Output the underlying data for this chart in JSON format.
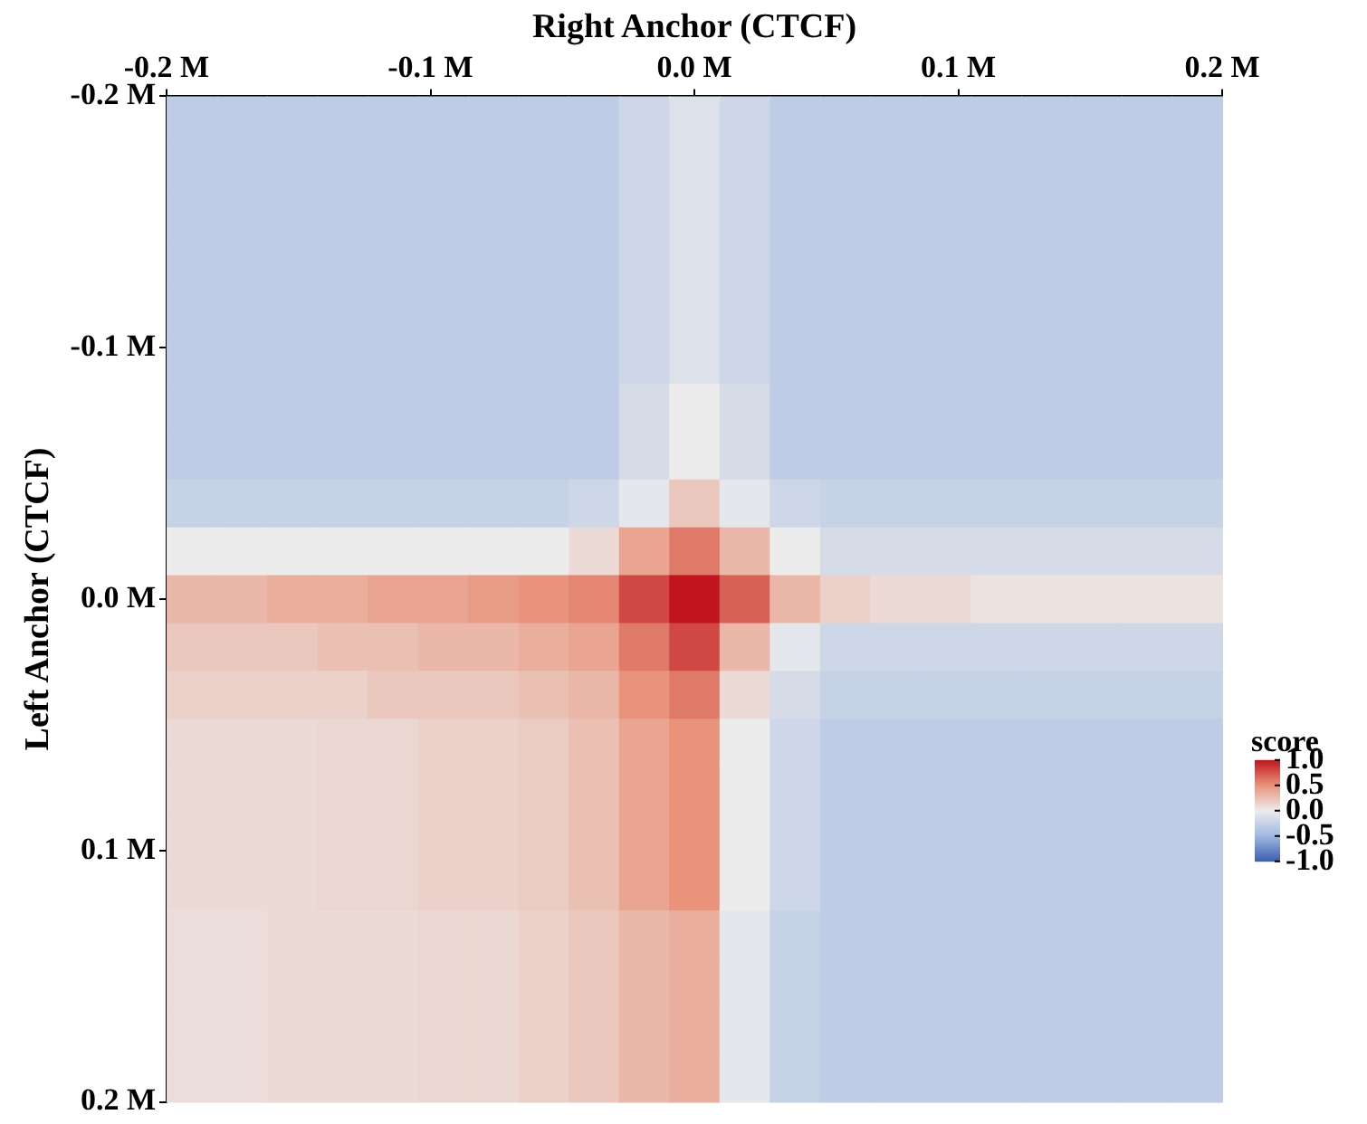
{
  "chart_data": {
    "type": "heatmap",
    "x2label": "Right Anchor (CTCF)",
    "ylabel": "Left Anchor (CTCF)",
    "clabel": "score",
    "categories": [
      null,
      null,
      null,
      null,
      null,
      null,
      null,
      null,
      null,
      null,
      null,
      null,
      null,
      null,
      null,
      null,
      null,
      null,
      null,
      null,
      null
    ],
    "x2lim": [
      -0.2,
      0.2
    ],
    "x2ticks": [
      {
        "value": -0.2,
        "label": "-0.2 M"
      },
      {
        "value": -0.1,
        "label": "-0.1 M"
      },
      {
        "value": 0,
        "label": "0.0 M"
      },
      {
        "value": 0.1,
        "label": "0.1 M"
      },
      {
        "value": 0.2,
        "label": "0.2 M"
      }
    ],
    "ylim": [
      0.2,
      -0.2
    ],
    "yticks": [
      {
        "value": -0.2,
        "label": "-0.2 M"
      },
      {
        "value": -0.1,
        "label": "-0.1 M"
      },
      {
        "value": 0,
        "label": "0.0 M"
      },
      {
        "value": 0.1,
        "label": "0.1 M"
      },
      {
        "value": 0.2,
        "label": "0.2 M"
      }
    ],
    "clim": [
      -1,
      1
    ],
    "cticks": [
      {
        "value": 1,
        "label": "1.0"
      },
      {
        "value": 0.5,
        "label": "0.5"
      },
      {
        "value": 0,
        "label": "0.0"
      },
      {
        "value": -0.5,
        "label": "-0.5"
      },
      {
        "value": -1,
        "label": "-1.0"
      }
    ],
    "cells": [
      [
        -0.3,
        -0.3,
        -0.3,
        -0.3,
        -0.3,
        -0.3,
        -0.3,
        -0.3,
        -0.3,
        -0.2,
        -0.1,
        -0.2,
        -0.3,
        -0.3,
        -0.3,
        -0.3,
        -0.3,
        -0.3,
        -0.3,
        -0.3,
        -0.3
      ],
      [
        -0.3,
        -0.3,
        -0.3,
        -0.3,
        -0.3,
        -0.3,
        -0.3,
        -0.3,
        -0.3,
        -0.2,
        -0.1,
        -0.2,
        -0.3,
        -0.3,
        -0.3,
        -0.3,
        -0.3,
        -0.3,
        -0.3,
        -0.3,
        -0.3
      ],
      [
        -0.3,
        -0.3,
        -0.3,
        -0.3,
        -0.3,
        -0.3,
        -0.3,
        -0.3,
        -0.3,
        -0.2,
        -0.1,
        -0.2,
        -0.3,
        -0.3,
        -0.3,
        -0.3,
        -0.3,
        -0.3,
        -0.3,
        -0.3,
        -0.3
      ],
      [
        -0.3,
        -0.3,
        -0.3,
        -0.3,
        -0.3,
        -0.3,
        -0.3,
        -0.3,
        -0.3,
        -0.2,
        -0.1,
        -0.2,
        -0.3,
        -0.3,
        -0.3,
        -0.3,
        -0.3,
        -0.3,
        -0.3,
        -0.3,
        -0.3
      ],
      [
        -0.3,
        -0.3,
        -0.3,
        -0.3,
        -0.3,
        -0.3,
        -0.3,
        -0.3,
        -0.3,
        -0.2,
        -0.1,
        -0.2,
        -0.3,
        -0.3,
        -0.3,
        -0.3,
        -0.3,
        -0.3,
        -0.3,
        -0.3,
        -0.3
      ],
      [
        -0.3,
        -0.3,
        -0.3,
        -0.3,
        -0.3,
        -0.3,
        -0.3,
        -0.3,
        -0.3,
        -0.2,
        -0.1,
        -0.2,
        -0.3,
        -0.3,
        -0.3,
        -0.3,
        -0.3,
        -0.3,
        -0.3,
        -0.3,
        -0.3
      ],
      [
        -0.3,
        -0.3,
        -0.3,
        -0.3,
        -0.3,
        -0.3,
        -0.3,
        -0.3,
        -0.3,
        -0.15,
        0,
        -0.15,
        -0.3,
        -0.3,
        -0.3,
        -0.3,
        -0.3,
        -0.3,
        -0.3,
        -0.3,
        -0.3
      ],
      [
        -0.3,
        -0.3,
        -0.3,
        -0.3,
        -0.3,
        -0.3,
        -0.3,
        -0.3,
        -0.3,
        -0.15,
        0,
        -0.15,
        -0.3,
        -0.3,
        -0.3,
        -0.3,
        -0.3,
        -0.3,
        -0.3,
        -0.3,
        -0.3
      ],
      [
        -0.25,
        -0.25,
        -0.25,
        -0.25,
        -0.25,
        -0.25,
        -0.25,
        -0.25,
        -0.2,
        -0.05,
        0.2,
        -0.05,
        -0.2,
        -0.25,
        -0.25,
        -0.25,
        -0.25,
        -0.25,
        -0.25,
        -0.25,
        -0.25
      ],
      [
        0,
        0,
        0,
        0,
        0,
        0,
        0,
        0,
        0.1,
        0.4,
        0.6,
        0.3,
        0,
        -0.15,
        -0.15,
        -0.15,
        -0.15,
        -0.15,
        -0.15,
        -0.15,
        -0.15
      ],
      [
        0.3,
        0.3,
        0.35,
        0.35,
        0.4,
        0.4,
        0.45,
        0.5,
        0.55,
        0.8,
        1,
        0.7,
        0.3,
        0.15,
        0.1,
        0.1,
        0.05,
        0.05,
        0.05,
        0.05,
        0.05
      ],
      [
        0.2,
        0.2,
        0.2,
        0.25,
        0.25,
        0.3,
        0.3,
        0.35,
        0.4,
        0.6,
        0.8,
        0.3,
        -0.05,
        -0.2,
        -0.2,
        -0.2,
        -0.2,
        -0.2,
        -0.2,
        -0.2,
        -0.2
      ],
      [
        0.15,
        0.15,
        0.15,
        0.15,
        0.2,
        0.2,
        0.2,
        0.25,
        0.3,
        0.5,
        0.6,
        0.1,
        -0.15,
        -0.25,
        -0.25,
        -0.25,
        -0.25,
        -0.25,
        -0.25,
        -0.25,
        -0.25
      ],
      [
        0.1,
        0.1,
        0.1,
        0.12,
        0.12,
        0.15,
        0.15,
        0.18,
        0.25,
        0.4,
        0.5,
        0,
        -0.2,
        -0.3,
        -0.3,
        -0.3,
        -0.3,
        -0.3,
        -0.3,
        -0.3,
        -0.3
      ],
      [
        0.1,
        0.1,
        0.1,
        0.12,
        0.12,
        0.15,
        0.15,
        0.18,
        0.25,
        0.4,
        0.5,
        0,
        -0.2,
        -0.3,
        -0.3,
        -0.3,
        -0.3,
        -0.3,
        -0.3,
        -0.3,
        -0.3
      ],
      [
        0.1,
        0.1,
        0.1,
        0.12,
        0.12,
        0.15,
        0.15,
        0.18,
        0.25,
        0.4,
        0.5,
        0,
        -0.2,
        -0.3,
        -0.3,
        -0.3,
        -0.3,
        -0.3,
        -0.3,
        -0.3,
        -0.3
      ],
      [
        0.1,
        0.1,
        0.1,
        0.12,
        0.12,
        0.15,
        0.15,
        0.18,
        0.25,
        0.4,
        0.5,
        0,
        -0.2,
        -0.3,
        -0.3,
        -0.3,
        -0.3,
        -0.3,
        -0.3,
        -0.3,
        -0.3
      ],
      [
        0.08,
        0.08,
        0.1,
        0.1,
        0.1,
        0.12,
        0.12,
        0.15,
        0.2,
        0.3,
        0.35,
        -0.05,
        -0.25,
        -0.3,
        -0.3,
        -0.3,
        -0.3,
        -0.3,
        -0.3,
        -0.3,
        -0.3
      ],
      [
        0.08,
        0.08,
        0.1,
        0.1,
        0.1,
        0.12,
        0.12,
        0.15,
        0.2,
        0.3,
        0.35,
        -0.05,
        -0.25,
        -0.3,
        -0.3,
        -0.3,
        -0.3,
        -0.3,
        -0.3,
        -0.3,
        -0.3
      ],
      [
        0.08,
        0.08,
        0.1,
        0.1,
        0.1,
        0.12,
        0.12,
        0.15,
        0.2,
        0.3,
        0.35,
        -0.05,
        -0.25,
        -0.3,
        -0.3,
        -0.3,
        -0.3,
        -0.3,
        -0.3,
        -0.3,
        -0.3
      ],
      [
        0.08,
        0.08,
        0.1,
        0.1,
        0.1,
        0.12,
        0.12,
        0.15,
        0.2,
        0.3,
        0.35,
        -0.05,
        -0.25,
        -0.3,
        -0.3,
        -0.3,
        -0.3,
        -0.3,
        -0.3,
        -0.3,
        -0.3
      ]
    ]
  }
}
